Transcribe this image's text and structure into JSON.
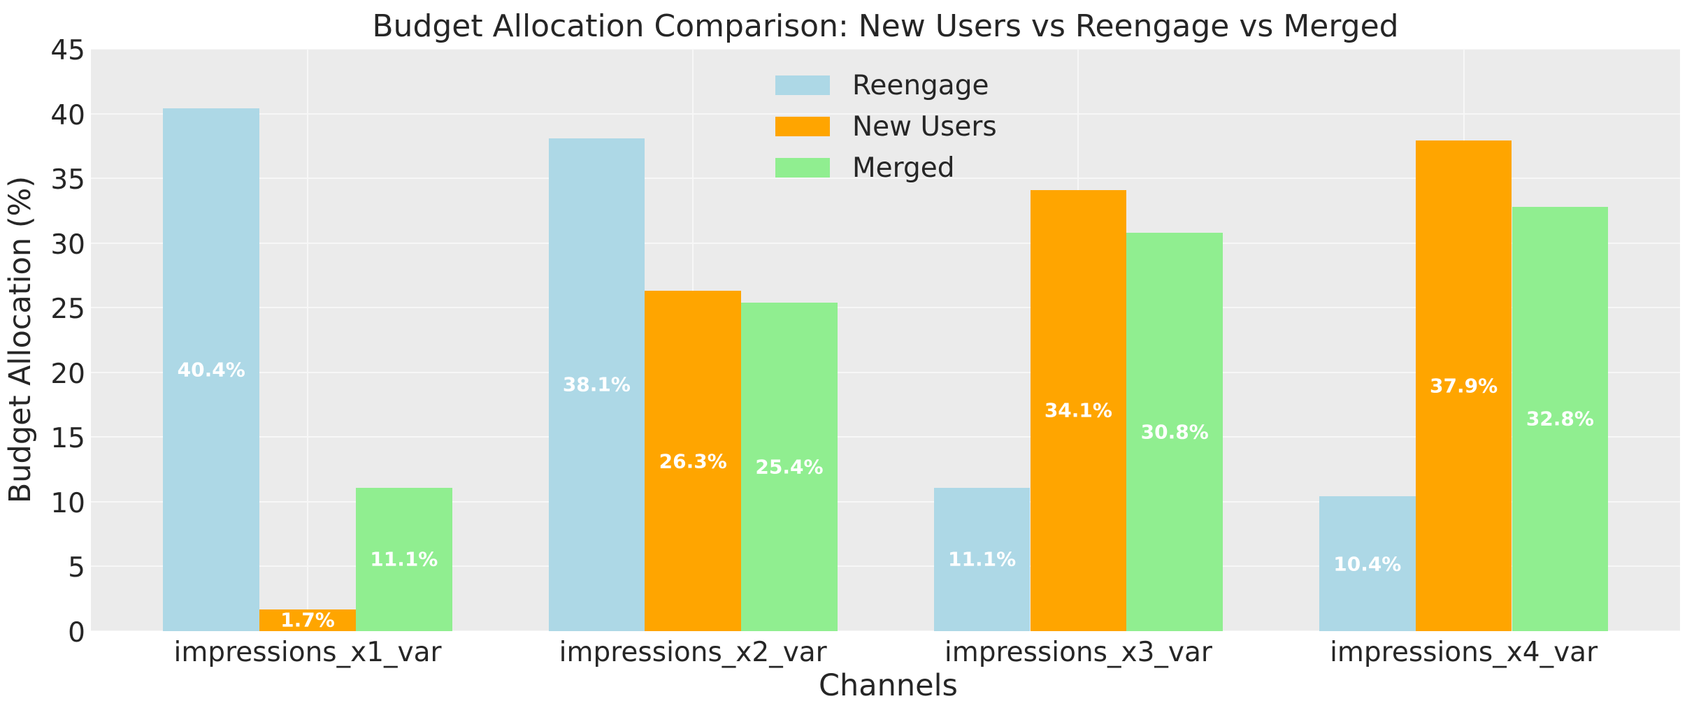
{
  "chart_data": {
    "type": "bar",
    "title": "Budget Allocation Comparison: New Users vs Reengage vs Merged",
    "xlabel": "Channels",
    "ylabel": "Budget Allocation (%)",
    "categories": [
      "impressions_x1_var",
      "impressions_x2_var",
      "impressions_x3_var",
      "impressions_x4_var"
    ],
    "series": [
      {
        "name": "Reengage",
        "color": "#add8e6",
        "values": [
          40.4,
          38.1,
          11.1,
          10.4
        ],
        "value_labels": [
          "40.4%",
          "38.1%",
          "11.1%",
          "10.4%"
        ]
      },
      {
        "name": "New Users",
        "color": "#ffa500",
        "values": [
          1.7,
          26.3,
          34.1,
          37.9
        ],
        "value_labels": [
          "1.7%",
          "26.3%",
          "34.1%",
          "37.9%"
        ]
      },
      {
        "name": "Merged",
        "color": "#90ee90",
        "values": [
          11.1,
          25.4,
          30.8,
          32.8
        ],
        "value_labels": [
          "11.1%",
          "25.4%",
          "30.8%",
          "32.8%"
        ]
      }
    ],
    "bar_value_label_format": "{value}%",
    "ylim": [
      0,
      45
    ],
    "yticks": [
      0,
      5,
      10,
      15,
      20,
      25,
      30,
      35,
      40,
      45
    ],
    "grid": true,
    "legend_position": "upper center",
    "legend": [
      "Reengage",
      "New Users",
      "Merged"
    ],
    "colors": {
      "plot_background": "#ebebeb",
      "gridline": "#f7f7f7",
      "text": "#262626",
      "bar_label": "#ffffff"
    }
  }
}
